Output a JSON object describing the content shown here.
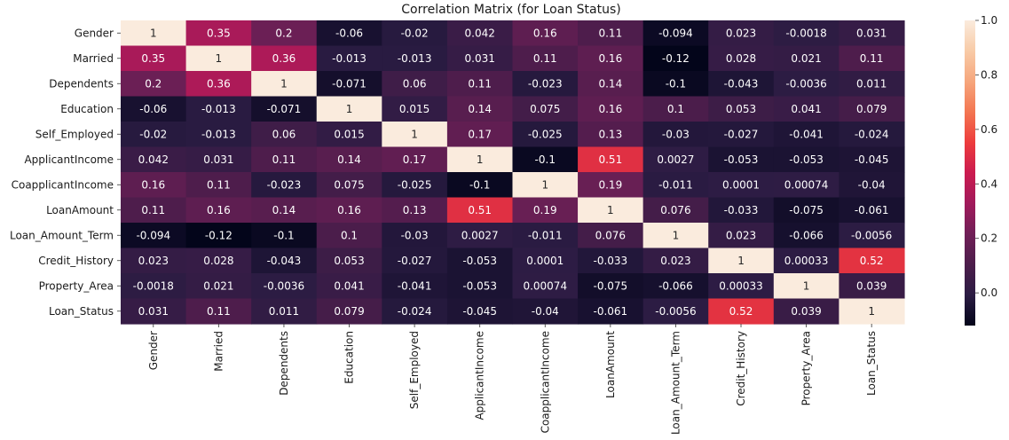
{
  "chart_data": {
    "type": "heatmap",
    "title": "Correlation Matrix (for Loan Status)",
    "xlabel": "",
    "ylabel": "",
    "labels": [
      "Gender",
      "Married",
      "Dependents",
      "Education",
      "Self_Employed",
      "ApplicantIncome",
      "CoapplicantIncome",
      "LoanAmount",
      "Loan_Amount_Term",
      "Credit_History",
      "Property_Area",
      "Loan_Status"
    ],
    "values": [
      [
        1,
        0.35,
        0.2,
        -0.06,
        -0.02,
        0.042,
        0.16,
        0.11,
        -0.094,
        0.023,
        -0.0018,
        0.031
      ],
      [
        0.35,
        1,
        0.36,
        -0.013,
        -0.013,
        0.031,
        0.11,
        0.16,
        -0.12,
        0.028,
        0.021,
        0.11
      ],
      [
        0.2,
        0.36,
        1,
        -0.071,
        0.06,
        0.11,
        -0.023,
        0.14,
        -0.1,
        -0.043,
        -0.0036,
        0.011
      ],
      [
        -0.06,
        -0.013,
        -0.071,
        1,
        0.015,
        0.14,
        0.075,
        0.16,
        0.1,
        0.053,
        0.041,
        0.079
      ],
      [
        -0.02,
        -0.013,
        0.06,
        0.015,
        1,
        0.17,
        -0.025,
        0.13,
        -0.03,
        -0.027,
        -0.041,
        -0.024
      ],
      [
        0.042,
        0.031,
        0.11,
        0.14,
        0.17,
        1,
        -0.1,
        0.51,
        0.0027,
        -0.053,
        -0.053,
        -0.045
      ],
      [
        0.16,
        0.11,
        -0.023,
        0.075,
        -0.025,
        -0.1,
        1,
        0.19,
        -0.011,
        0.0001,
        0.00074,
        -0.04
      ],
      [
        0.11,
        0.16,
        0.14,
        0.16,
        0.13,
        0.51,
        0.19,
        1,
        0.076,
        -0.033,
        -0.075,
        -0.061
      ],
      [
        -0.094,
        -0.12,
        -0.1,
        0.1,
        -0.03,
        0.0027,
        -0.011,
        0.076,
        1,
        0.023,
        -0.066,
        -0.0056
      ],
      [
        0.023,
        0.028,
        -0.043,
        0.053,
        -0.027,
        -0.053,
        0.0001,
        -0.033,
        0.023,
        1,
        0.00033,
        0.52
      ],
      [
        -0.0018,
        0.021,
        -0.0036,
        0.041,
        -0.041,
        -0.053,
        0.00074,
        -0.075,
        -0.066,
        0.00033,
        1,
        0.039
      ],
      [
        0.031,
        0.11,
        0.011,
        0.079,
        -0.024,
        -0.045,
        -0.04,
        -0.061,
        -0.0056,
        0.52,
        0.039,
        1
      ]
    ],
    "colorbar": {
      "min": -0.12,
      "max": 1.0,
      "ticks": [
        0.0,
        0.2,
        0.4,
        0.6,
        0.8,
        1.0
      ],
      "tick_labels": [
        "0.0",
        "0.2",
        "0.4",
        "0.6",
        "0.8",
        "1.0"
      ],
      "colormap": "rocket",
      "colors": [
        "#03051a",
        "#2b1c43",
        "#4c1d4b",
        "#701f57",
        "#a11a5b",
        "#cb1b4f",
        "#ed3c3c",
        "#f37651",
        "#f6a67c",
        "#f8cba7",
        "#faebdd"
      ]
    },
    "legend": "colorbar-right",
    "grid": false
  }
}
